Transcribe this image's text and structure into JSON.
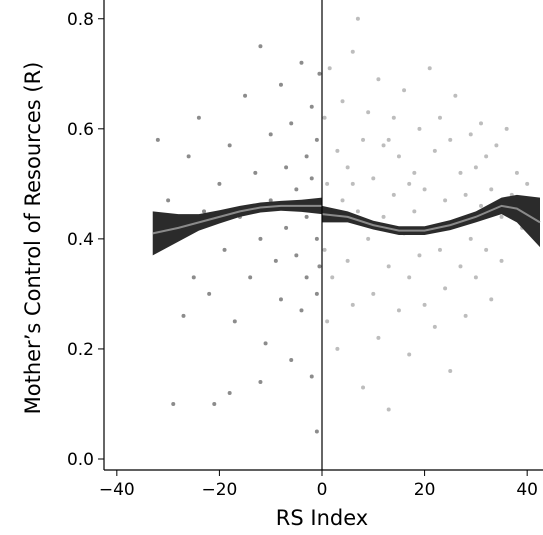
{
  "chart_data": {
    "type": "scatter",
    "x_label": "RS Index",
    "y_label": "Mother’s Control of Resources (R)",
    "xlim": [
      -42.5,
      42.5
    ],
    "ylim": [
      -0.02,
      0.825
    ],
    "xticks": [
      {
        "value": -40,
        "label": "−40"
      },
      {
        "value": -20,
        "label": "−20"
      },
      0,
      20,
      40
    ],
    "yticks": [
      {
        "value": 0,
        "label": "0.0"
      },
      0.2,
      0.4,
      0.6,
      0.8
    ],
    "vline": 0,
    "series": [
      {
        "color": "#8c8c8c",
        "x": [
          -32,
          -30,
          -29,
          -28,
          -27,
          -26,
          -25,
          -24,
          -23,
          -22,
          -21,
          -20,
          -19,
          -18,
          -17,
          -16,
          -15,
          -14,
          -13,
          -12,
          -12,
          -11,
          -10,
          -10,
          -9,
          -8,
          -8,
          -7,
          -7,
          -6,
          -6,
          -5,
          -5,
          -4,
          -4,
          -3,
          -3,
          -3,
          -2,
          -2,
          -2,
          -1,
          -1,
          -1,
          -1,
          -0.5,
          -0.5,
          -0.5,
          -12,
          -18
        ],
        "y": [
          0.58,
          0.47,
          0.1,
          0.4,
          0.26,
          0.55,
          0.33,
          0.62,
          0.45,
          0.3,
          0.1,
          0.5,
          0.38,
          0.57,
          0.25,
          0.44,
          0.66,
          0.33,
          0.52,
          0.75,
          0.4,
          0.21,
          0.59,
          0.47,
          0.36,
          0.68,
          0.29,
          0.53,
          0.42,
          0.18,
          0.61,
          0.49,
          0.37,
          0.72,
          0.27,
          0.55,
          0.44,
          0.33,
          0.64,
          0.51,
          0.15,
          0.58,
          0.4,
          0.3,
          0.05,
          0.7,
          0.46,
          0.35,
          0.14,
          0.12
        ]
      },
      {
        "color": "#bdbdbd",
        "x": [
          0.5,
          0.5,
          1,
          1,
          1.5,
          2,
          2,
          3,
          3,
          4,
          4,
          5,
          5,
          6,
          6,
          7,
          7,
          8,
          8,
          9,
          9,
          10,
          10,
          11,
          11,
          12,
          12,
          13,
          13,
          14,
          14,
          15,
          15,
          16,
          16,
          17,
          17,
          18,
          18,
          19,
          19,
          20,
          20,
          21,
          21,
          22,
          22,
          23,
          23,
          24,
          24,
          25,
          25,
          26,
          26,
          27,
          27,
          28,
          28,
          29,
          29,
          30,
          30,
          31,
          31,
          32,
          32,
          33,
          33,
          34,
          35,
          35,
          36,
          37,
          38,
          39,
          40,
          41,
          13,
          6,
          17
        ],
        "y": [
          0.62,
          0.38,
          0.5,
          0.25,
          0.71,
          0.44,
          0.33,
          0.56,
          0.2,
          0.47,
          0.65,
          0.36,
          0.53,
          0.28,
          0.74,
          0.45,
          0.8,
          0.58,
          0.13,
          0.4,
          0.63,
          0.3,
          0.51,
          0.69,
          0.22,
          0.44,
          0.57,
          0.35,
          0.09,
          0.62,
          0.48,
          0.27,
          0.55,
          0.41,
          0.67,
          0.33,
          0.19,
          0.52,
          0.45,
          0.6,
          0.37,
          0.28,
          0.49,
          0.71,
          0.42,
          0.56,
          0.24,
          0.38,
          0.62,
          0.47,
          0.31,
          0.58,
          0.16,
          0.43,
          0.66,
          0.35,
          0.52,
          0.48,
          0.26,
          0.59,
          0.4,
          0.53,
          0.33,
          0.46,
          0.61,
          0.38,
          0.55,
          0.49,
          0.29,
          0.57,
          0.44,
          0.36,
          0.6,
          0.48,
          0.52,
          0.42,
          0.5,
          0.46,
          0.58,
          0.5,
          0.5
        ]
      }
    ],
    "fits": [
      {
        "color": "#2b2b2b",
        "line_color": "#8a8a8a",
        "x": [
          -33,
          -28,
          -24,
          -20,
          -16,
          -12,
          -8,
          -4,
          0
        ],
        "y": [
          0.41,
          0.42,
          0.43,
          0.44,
          0.45,
          0.457,
          0.46,
          0.46,
          0.46
        ],
        "lower": [
          0.37,
          0.395,
          0.415,
          0.428,
          0.44,
          0.448,
          0.451,
          0.449,
          0.445
        ],
        "upper": [
          0.45,
          0.445,
          0.445,
          0.452,
          0.46,
          0.466,
          0.469,
          0.471,
          0.475
        ]
      },
      {
        "color": "#2b2b2b",
        "line_color": "#8a8a8a",
        "x": [
          0,
          5,
          10,
          15,
          20,
          25,
          30,
          35,
          38,
          42.5
        ],
        "y": [
          0.445,
          0.44,
          0.425,
          0.415,
          0.415,
          0.425,
          0.44,
          0.46,
          0.455,
          0.43
        ],
        "lower": [
          0.43,
          0.43,
          0.417,
          0.407,
          0.407,
          0.416,
          0.43,
          0.445,
          0.43,
          0.385
        ],
        "upper": [
          0.46,
          0.45,
          0.433,
          0.423,
          0.423,
          0.434,
          0.45,
          0.475,
          0.48,
          0.475
        ]
      }
    ]
  }
}
